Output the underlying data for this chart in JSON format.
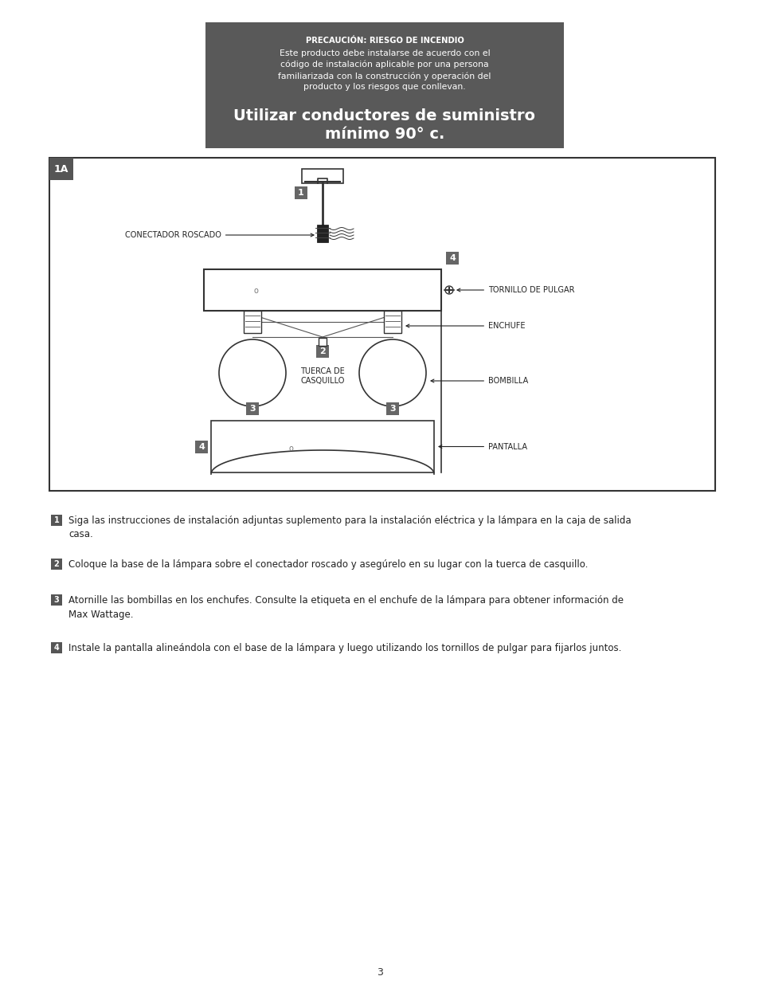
{
  "bg_color": "#ffffff",
  "header_box_color": "#595959",
  "header_title": "PRECAUCIÓN: RIESGO DE INCENDIO",
  "header_body": "Este producto debe instalarse de acuerdo con el\ncódigo de instalación aplicable por una persona\nfamiliarizada con la construcción y operación del\nproducto y los riesgos que conllevan.",
  "header_bold": "Utilizar conductores de suministro\nmínimo 90° c.",
  "diagram_label": "1A",
  "step1_text": "Siga las instrucciones de instalación adjuntas suplemento para la instalación eléctrica y la lámpara en la caja de salida\ncasa.",
  "step2_text": "Coloque la base de la lámpara sobre el conectador roscado y asegúrelo en su lugar con la tuerca de casquillo.",
  "step3_text": "Atornille las bombillas en los enchufes. Consulte la etiqueta en el enchufe de la lámpara para obtener información de\nMax Wattage.",
  "step4_text": "Instale la pantalla alineándola con el base de la lámpara y luego utilizando los tornillos de pulgar para fijarlos juntos.",
  "page_number": "3",
  "badge_color": "#666666",
  "text_color": "#222222",
  "line_color": "#333333"
}
